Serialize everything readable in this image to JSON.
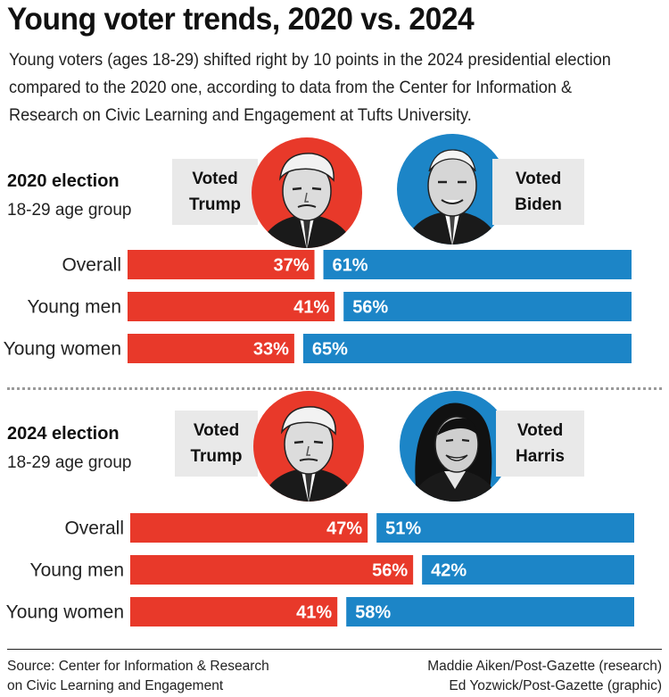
{
  "header": {
    "title": "Young voter trends, 2020 vs. 2024",
    "subtitle": "Young voters (ages 18-29) shifted right by 10 points in the 2024 presidential election compared to the 2020 one, according to data from the Center for Information & Research on Civic Learning and Engagement at Tufts University."
  },
  "colors": {
    "republican": "#e8392a",
    "democrat": "#1c85c7",
    "label_bg": "#e9e9e9"
  },
  "chart_data": [
    {
      "type": "bar",
      "title": "2020 election",
      "subtitle": "18-29 age group",
      "categories": [
        "Overall",
        "Young men",
        "Young women"
      ],
      "left_label": [
        "Voted",
        "Trump"
      ],
      "right_label": [
        "Voted",
        "Biden"
      ],
      "series": [
        {
          "name": "Voted Trump",
          "values": [
            37,
            41,
            33
          ]
        },
        {
          "name": "Voted Biden",
          "values": [
            61,
            56,
            65
          ]
        }
      ]
    },
    {
      "type": "bar",
      "title": "2024 election",
      "subtitle": "18-29 age group",
      "categories": [
        "Overall",
        "Young men",
        "Young women"
      ],
      "left_label": [
        "Voted",
        "Trump"
      ],
      "right_label": [
        "Voted",
        "Harris"
      ],
      "series": [
        {
          "name": "Voted Trump",
          "values": [
            47,
            56,
            41
          ]
        },
        {
          "name": "Voted Harris",
          "values": [
            51,
            42,
            58
          ]
        }
      ]
    }
  ],
  "footer": {
    "source_lines": [
      "Source: Center for Information & Research",
      "on Civic Learning and Engagement"
    ],
    "credit_lines": [
      "Maddie Aiken/Post-Gazette (research)",
      "Ed Yozwick/Post-Gazette (graphic)"
    ]
  }
}
